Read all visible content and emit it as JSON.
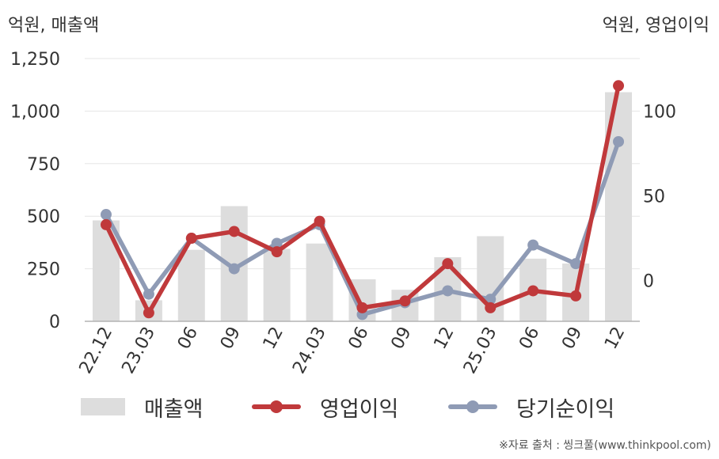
{
  "units": {
    "left": "억원, 매출액",
    "right": "억원, 영업이익"
  },
  "source": "※자료 출처 : 씽크풀(www.thinkpool.com)",
  "colors": {
    "revenue": "#dddddd",
    "operating_profit": "#c0393b",
    "net_income": "#8f9bb5"
  },
  "chart_data": {
    "type": "bar",
    "categories": [
      "22.12",
      "23.03",
      "06",
      "09",
      "12",
      "24.03",
      "06",
      "09",
      "12",
      "25.03",
      "06",
      "09",
      "12"
    ],
    "series": [
      {
        "name": "매출액",
        "type": "bar",
        "axis": "left",
        "values": [
          480,
          100,
          340,
          548,
          345,
          370,
          200,
          150,
          305,
          405,
          298,
          275,
          1090
        ]
      },
      {
        "name": "영업이익",
        "type": "line",
        "axis": "right",
        "values": [
          33,
          -19,
          25,
          29,
          17,
          35,
          -16,
          -12,
          10,
          -16,
          -6,
          -9,
          115
        ]
      },
      {
        "name": "당기순이익",
        "type": "line",
        "axis": "right",
        "values": [
          39,
          -8,
          25,
          7,
          22,
          33,
          -20,
          -13,
          -6,
          -11,
          21,
          10,
          82
        ]
      }
    ],
    "y_left": {
      "ticks": [
        "0",
        "250",
        "500",
        "750",
        "1,000",
        "1,250"
      ],
      "lim": [
        0,
        1250
      ]
    },
    "y_right": {
      "ticks": [
        "0",
        "50",
        "100"
      ],
      "lim": [
        -24,
        131
      ]
    },
    "legend": {
      "position": "bottom"
    },
    "grid": true
  }
}
